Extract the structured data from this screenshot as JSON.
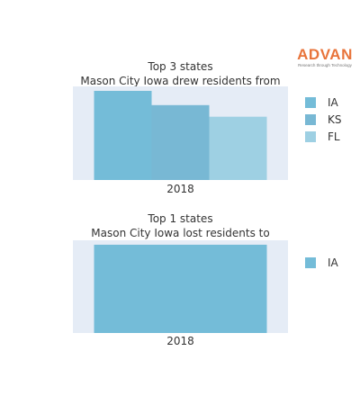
{
  "logo": {
    "word": "ADVAN",
    "tagline": "Research through Technology"
  },
  "colors": {
    "IA": "#74bcd8",
    "KS": "#78b8d4",
    "FL": "#9ed0e3",
    "plot_bg": "#e5ecf6"
  },
  "chart_data": [
    {
      "type": "bar",
      "title_lines": [
        "Top 3 states",
        "Mason City Iowa drew residents from"
      ],
      "categories": [
        "2018"
      ],
      "series": [
        {
          "name": "IA",
          "values": [
            1.0
          ]
        },
        {
          "name": "KS",
          "values": [
            0.84
          ]
        },
        {
          "name": "FL",
          "values": [
            0.71
          ]
        }
      ],
      "legend_position": "right",
      "grid": false
    },
    {
      "type": "bar",
      "title_lines": [
        "Top 1 states",
        "Mason City Iowa lost residents to"
      ],
      "categories": [
        "2018"
      ],
      "series": [
        {
          "name": "IA",
          "values": [
            1.0
          ]
        }
      ],
      "legend_position": "right",
      "grid": false
    }
  ]
}
